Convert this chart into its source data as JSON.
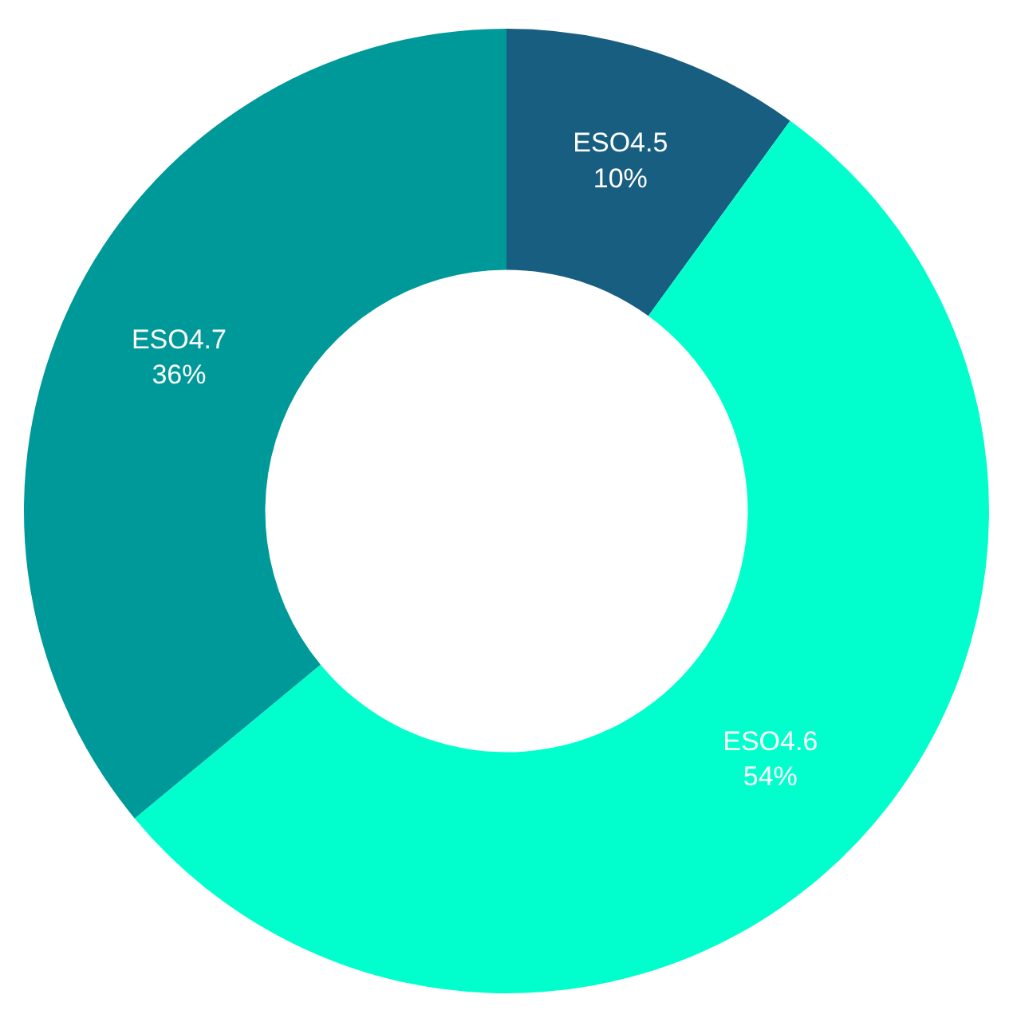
{
  "chart_data": {
    "type": "donut",
    "categories": [
      "ESO4.5",
      "ESO4.6",
      "ESO4.7"
    ],
    "values": [
      10,
      54,
      36
    ],
    "value_labels": [
      "10%",
      "54%",
      "36%"
    ],
    "colors": [
      "#175e80",
      "#00ffcc",
      "#009999"
    ],
    "legend": false
  }
}
